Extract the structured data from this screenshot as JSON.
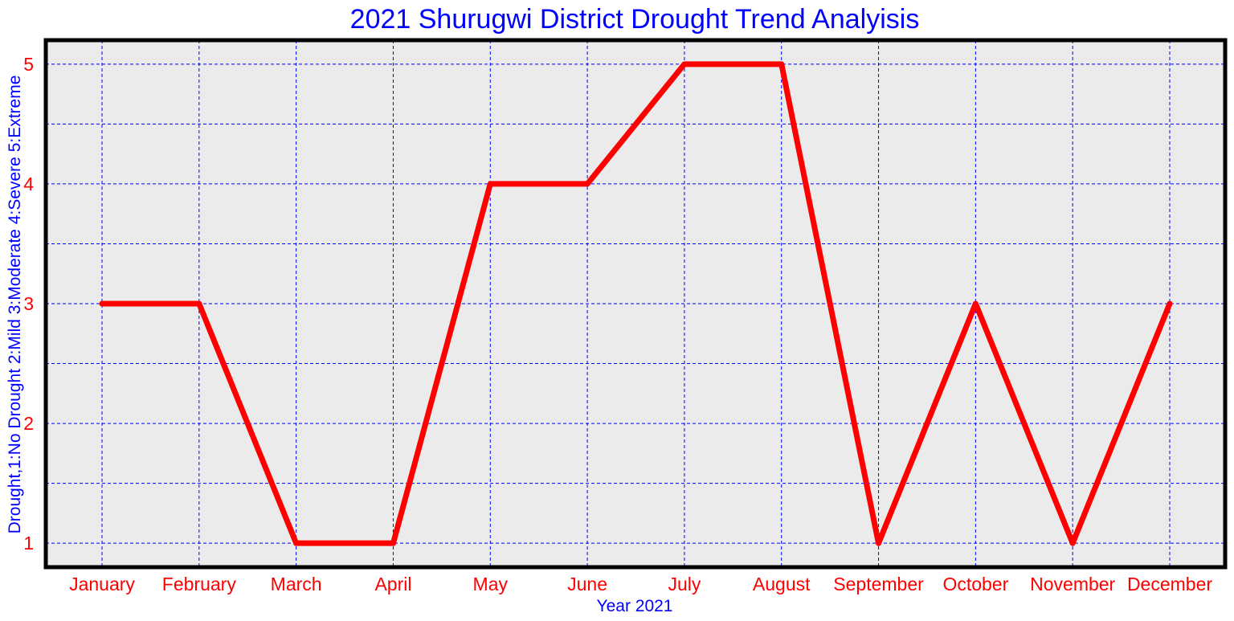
{
  "chart_data": {
    "type": "line",
    "title": "2021 Shurugwi District Drought Trend Analyisis",
    "xlabel": "Year 2021",
    "ylabel": "Drought,1:No Drought 2:Mild 3:Moderate 4:Severe 5:Extreme",
    "categories": [
      "January",
      "February",
      "March",
      "April",
      "May",
      "June",
      "July",
      "August",
      "September",
      "October",
      "November",
      "December"
    ],
    "series": [
      {
        "values": [
          3,
          3,
          1,
          1,
          4,
          4,
          5,
          5,
          1,
          3,
          1,
          3
        ]
      }
    ],
    "ylim": [
      0.8,
      5.2
    ],
    "yticks": [
      "1",
      "2",
      "3",
      "4",
      "5"
    ],
    "grid": true,
    "colors": {
      "line": "#ff0000",
      "grid": "#0000ff",
      "plot_background": "#ebebeb",
      "title": "#0000ff",
      "axis_labels": "#0000ff",
      "tick_labels": "#ff0000",
      "frame": "#000000"
    }
  }
}
